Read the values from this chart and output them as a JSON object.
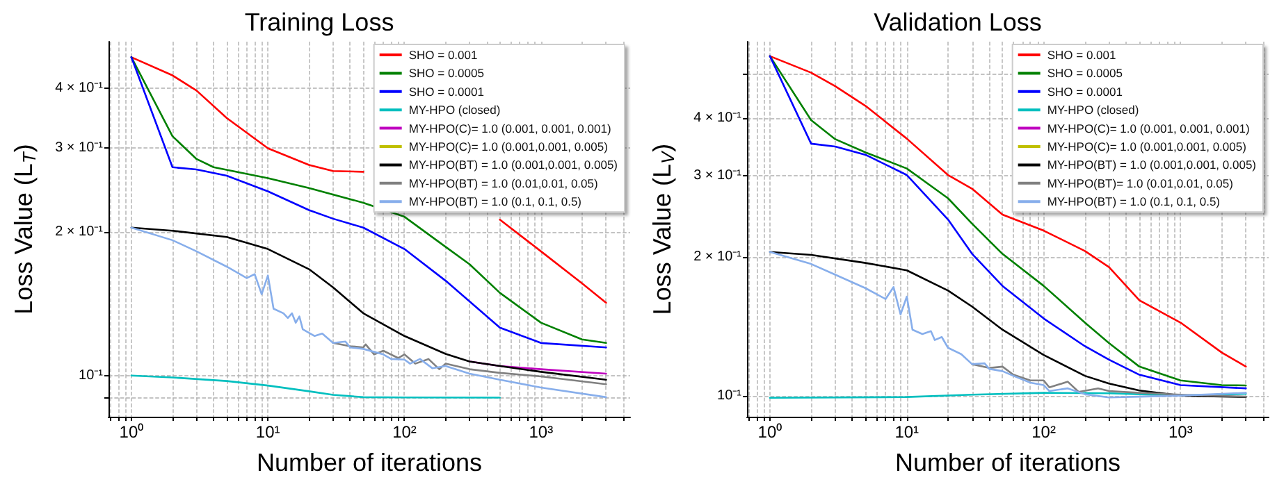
{
  "chart_data": [
    {
      "type": "line",
      "title": "Training Loss",
      "xlabel": "Number of iterations",
      "ylabel": "Loss Value (L$_{T}$)",
      "log": "xy",
      "grid": true,
      "legend": "top right",
      "marker": "none",
      "line_style": "solid",
      "xlim": [
        0.68,
        4500
      ],
      "ylim": [
        0.082,
        0.5
      ],
      "xticks": [
        {
          "value": 0.7,
          "label": null
        },
        {
          "value": 0.8,
          "label": null
        },
        {
          "value": 0.9,
          "label": null
        },
        {
          "value": 1,
          "label": "10⁰"
        },
        {
          "value": 2,
          "label": null
        },
        {
          "value": 3,
          "label": null
        },
        {
          "value": 4,
          "label": null
        },
        {
          "value": 5,
          "label": null
        },
        {
          "value": 6,
          "label": null
        },
        {
          "value": 7,
          "label": null
        },
        {
          "value": 8,
          "label": null
        },
        {
          "value": 9,
          "label": null
        },
        {
          "value": 10,
          "label": "10¹"
        },
        {
          "value": 20,
          "label": null
        },
        {
          "value": 30,
          "label": null
        },
        {
          "value": 40,
          "label": null
        },
        {
          "value": 50,
          "label": null
        },
        {
          "value": 60,
          "label": null
        },
        {
          "value": 70,
          "label": null
        },
        {
          "value": 80,
          "label": null
        },
        {
          "value": 90,
          "label": null
        },
        {
          "value": 100,
          "label": "10²"
        },
        {
          "value": 200,
          "label": null
        },
        {
          "value": 300,
          "label": null
        },
        {
          "value": 400,
          "label": null
        },
        {
          "value": 500,
          "label": null
        },
        {
          "value": 600,
          "label": null
        },
        {
          "value": 700,
          "label": null
        },
        {
          "value": 800,
          "label": null
        },
        {
          "value": 900,
          "label": null
        },
        {
          "value": 1000,
          "label": "10³"
        },
        {
          "value": 2000,
          "label": null
        },
        {
          "value": 3000,
          "label": null
        },
        {
          "value": 4000,
          "label": null
        }
      ],
      "yticks": [
        {
          "value": 0.09,
          "label": null
        },
        {
          "value": 0.1,
          "label": "10⁻¹"
        },
        {
          "value": 0.2,
          "label": "2 × 10⁻¹"
        },
        {
          "value": 0.3,
          "label": "3 × 10⁻¹"
        },
        {
          "value": 0.4,
          "label": "4 × 10⁻¹"
        }
      ],
      "series": [
        {
          "name": "SHO = 0.001",
          "color": "#ff0000",
          "x": [
            1,
            2,
            3,
            5,
            10,
            20,
            30,
            50,
            100,
            500,
            1000,
            2000,
            3000
          ],
          "values": [
            0.464,
            0.425,
            0.395,
            0.346,
            0.299,
            0.276,
            0.268,
            0.267,
            null,
            0.212,
            0.182,
            0.156,
            0.142
          ]
        },
        {
          "name": "SHO = 0.0005",
          "color": "#008000",
          "x": [
            1,
            2,
            3,
            4,
            10,
            20,
            50,
            100,
            200,
            300,
            500,
            1000,
            2000,
            3000
          ],
          "values": [
            0.464,
            0.317,
            0.284,
            0.273,
            0.259,
            0.247,
            0.23,
            0.215,
            0.186,
            0.171,
            0.149,
            0.129,
            0.119,
            0.117
          ]
        },
        {
          "name": "SHO = 0.0001",
          "color": "#0000ff",
          "x": [
            1,
            2,
            3,
            5,
            10,
            20,
            30,
            50,
            100,
            200,
            300,
            500,
            1000,
            3000
          ],
          "values": [
            0.464,
            0.273,
            0.27,
            0.262,
            0.243,
            0.222,
            0.213,
            0.204,
            0.184,
            0.158,
            0.143,
            0.126,
            0.117,
            0.1145
          ]
        },
        {
          "name": "MY-HPO (closed)",
          "color": "#00bfbf",
          "x": [
            1,
            2,
            5,
            10,
            20,
            30,
            50,
            100,
            500
          ],
          "values": [
            0.1,
            0.0991,
            0.0974,
            0.0953,
            0.0927,
            0.0911,
            0.0901,
            0.09,
            0.0899
          ]
        },
        {
          "name": "MY-HPO(C)= 1.0 (0.001, 0.001, 0.001)",
          "color": "#bf00bf",
          "x": [
            300,
            500,
            1000,
            3000
          ],
          "values": [
            0.107,
            0.1047,
            0.1031,
            0.1009
          ]
        },
        {
          "name": "MY-HPO(C)= 1.0 (0.001,0.001, 0.005)",
          "color": "#bfbf00"
        },
        {
          "name": "MY-HPO(BT) = 1.0 (0.001,0.001, 0.005)",
          "color": "#000000",
          "x": [
            1,
            2,
            5,
            10,
            20,
            30,
            50,
            100,
            200,
            300,
            500,
            1000,
            3000
          ],
          "values": [
            0.204,
            0.201,
            0.195,
            0.184,
            0.167,
            0.153,
            0.135,
            0.121,
            0.111,
            0.107,
            0.1047,
            0.1018,
            0.098
          ]
        },
        {
          "name": "MY-HPO(BT) = 1.0 (0.01,0.01, 0.05)",
          "color": "#808080",
          "x": [
            30,
            40,
            50,
            52,
            60,
            70,
            90,
            100,
            120,
            150,
            180,
            200,
            300,
            500,
            1000,
            3000
          ],
          "values": [
            0.117,
            0.1152,
            0.1145,
            0.1162,
            0.1107,
            0.1127,
            0.1088,
            0.1107,
            0.1059,
            0.1083,
            0.1031,
            0.1059,
            0.1031,
            0.1013,
            0.0996,
            0.0959
          ]
        },
        {
          "name": "MY-HPO(BT) = 1.0 (0.1, 0.1, 0.5)",
          "color": "#87aeeb",
          "x": [
            1,
            2,
            3,
            5,
            7,
            8,
            9,
            10,
            11,
            13,
            14,
            15,
            16,
            17,
            18,
            22,
            25,
            30,
            37,
            40,
            50,
            70,
            80,
            100,
            110,
            130,
            160,
            200,
            300,
            500,
            1000,
            3000
          ],
          "values": [
            0.204,
            0.192,
            0.182,
            0.169,
            0.16,
            0.163,
            0.148,
            0.162,
            0.138,
            0.135,
            0.132,
            0.135,
            0.129,
            0.133,
            0.125,
            0.121,
            0.1224,
            0.117,
            0.1178,
            0.1145,
            0.1137,
            0.1107,
            0.1083,
            0.108,
            0.1059,
            0.1083,
            0.1036,
            0.1047,
            0.1009,
            0.098,
            0.0944,
            0.0901
          ]
        }
      ]
    },
    {
      "type": "line",
      "title": "Validation Loss",
      "xlabel": "Number of iterations",
      "ylabel": "Loss Value (L$_{V}$)",
      "log": "xy",
      "grid": true,
      "legend": "top right",
      "marker": "none",
      "line_style": "solid",
      "xlim": [
        0.68,
        4400
      ],
      "ylim": [
        0.09,
        0.586
      ],
      "xticks": [
        {
          "value": 0.7,
          "label": null
        },
        {
          "value": 0.8,
          "label": null
        },
        {
          "value": 0.9,
          "label": null
        },
        {
          "value": 1,
          "label": "10⁰"
        },
        {
          "value": 2,
          "label": null
        },
        {
          "value": 3,
          "label": null
        },
        {
          "value": 4,
          "label": null
        },
        {
          "value": 5,
          "label": null
        },
        {
          "value": 6,
          "label": null
        },
        {
          "value": 7,
          "label": null
        },
        {
          "value": 8,
          "label": null
        },
        {
          "value": 9,
          "label": null
        },
        {
          "value": 10,
          "label": "10¹"
        },
        {
          "value": 20,
          "label": null
        },
        {
          "value": 30,
          "label": null
        },
        {
          "value": 40,
          "label": null
        },
        {
          "value": 50,
          "label": null
        },
        {
          "value": 60,
          "label": null
        },
        {
          "value": 70,
          "label": null
        },
        {
          "value": 80,
          "label": null
        },
        {
          "value": 90,
          "label": null
        },
        {
          "value": 100,
          "label": "10²"
        },
        {
          "value": 200,
          "label": null
        },
        {
          "value": 300,
          "label": null
        },
        {
          "value": 400,
          "label": null
        },
        {
          "value": 500,
          "label": null
        },
        {
          "value": 600,
          "label": null
        },
        {
          "value": 700,
          "label": null
        },
        {
          "value": 800,
          "label": null
        },
        {
          "value": 900,
          "label": null
        },
        {
          "value": 1000,
          "label": "10³"
        },
        {
          "value": 2000,
          "label": null
        },
        {
          "value": 3000,
          "label": null
        },
        {
          "value": 4000,
          "label": null
        }
      ],
      "yticks": [
        {
          "value": 0.1,
          "label": "10⁻¹"
        },
        {
          "value": 0.2,
          "label": "2 × 10⁻¹"
        },
        {
          "value": 0.3,
          "label": "3 × 10⁻¹"
        },
        {
          "value": 0.4,
          "label": "4 × 10⁻¹"
        },
        {
          "value": 0.5,
          "label": null
        }
      ],
      "series": [
        {
          "name": "SHO = 0.001",
          "color": "#ff0000",
          "x": [
            1,
            2,
            3,
            5,
            10,
            20,
            30,
            50,
            100,
            200,
            300,
            500,
            1000,
            2000,
            3000
          ],
          "values": [
            0.545,
            0.502,
            0.469,
            0.425,
            0.361,
            0.301,
            0.281,
            0.247,
            0.228,
            0.206,
            0.19,
            0.161,
            0.144,
            0.124,
            0.1156
          ]
        },
        {
          "name": "SHO = 0.0005",
          "color": "#008000",
          "x": [
            1,
            2,
            3,
            5,
            10,
            20,
            30,
            50,
            100,
            200,
            300,
            500,
            1000,
            2000,
            3000
          ],
          "values": [
            0.545,
            0.396,
            0.36,
            0.337,
            0.311,
            0.268,
            0.236,
            0.203,
            0.173,
            0.144,
            0.13,
            0.1156,
            0.1079,
            0.1054,
            0.1052
          ]
        },
        {
          "name": "SHO = 0.0001",
          "color": "#0000ff",
          "x": [
            1,
            2,
            3,
            5,
            10,
            20,
            30,
            50,
            100,
            200,
            300,
            500,
            1000,
            3000
          ],
          "values": [
            0.545,
            0.352,
            0.347,
            0.333,
            0.301,
            0.241,
            0.203,
            0.173,
            0.147,
            0.128,
            0.1197,
            0.111,
            0.1054,
            0.1037
          ]
        },
        {
          "name": "MY-HPO (closed)",
          "color": "#00bfbf",
          "x": [
            1,
            10,
            30,
            100,
            300,
            1000,
            3000
          ],
          "values": [
            0.0989,
            0.0993,
            0.1005,
            0.1014,
            0.1012,
            0.1,
            0.1009
          ]
        },
        {
          "name": "MY-HPO(C)= 1.0 (0.001, 0.001, 0.001)",
          "color": "#bf00bf"
        },
        {
          "name": "MY-HPO(C)= 1.0 (0.001,0.001, 0.005)",
          "color": "#bfbf00"
        },
        {
          "name": "MY-HPO(BT) = 1.0 (0.001,0.001, 0.005)",
          "color": "#000000",
          "x": [
            1,
            2,
            5,
            10,
            20,
            30,
            50,
            100,
            200,
            300,
            500,
            1000,
            3000
          ],
          "values": [
            0.205,
            0.202,
            0.194,
            0.187,
            0.169,
            0.156,
            0.139,
            0.1225,
            0.1104,
            0.1062,
            0.1026,
            0.1,
            0.0993
          ]
        },
        {
          "name": "MY-HPO(BT)= 1.0 (0.01,0.01, 0.05)",
          "color": "#808080",
          "x": [
            30,
            40,
            50,
            60,
            80,
            100,
            110,
            150,
            180,
            250,
            300,
            500,
            1000,
            3000
          ],
          "values": [
            0.117,
            0.1148,
            0.1156,
            0.111,
            0.1079,
            0.1079,
            0.1042,
            0.1072,
            0.1019,
            0.1037,
            0.1023,
            0.1014,
            0.1005,
            0.0995
          ]
        },
        {
          "name": "MY-HPO(BT) = 1.0 (0.1, 0.1, 0.5)",
          "color": "#87aeeb",
          "x": [
            1,
            2,
            3,
            5,
            7,
            8,
            9,
            10,
            11,
            13,
            15,
            16,
            18,
            20,
            25,
            30,
            37,
            40,
            50,
            60,
            80,
            100,
            110,
            150,
            200,
            300,
            500,
            1000,
            3000
          ],
          "values": [
            0.205,
            0.193,
            0.183,
            0.171,
            0.162,
            0.172,
            0.15,
            0.164,
            0.139,
            0.136,
            0.138,
            0.132,
            0.134,
            0.127,
            0.123,
            0.117,
            0.1175,
            0.1143,
            0.113,
            0.1104,
            0.1067,
            0.1054,
            0.1023,
            0.1037,
            0.1007,
            0.0991,
            0.0995,
            0.1,
            0.1014
          ]
        }
      ]
    }
  ]
}
